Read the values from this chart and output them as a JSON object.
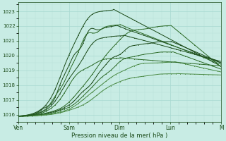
{
  "xlabel": "Pression niveau de la mer( hPa )",
  "bg_color": "#c8ece4",
  "grid_color_major": "#a8d8d0",
  "grid_color_minor": "#b8e0d8",
  "line_color_dark": "#1a4a18",
  "line_color_mid": "#2d6b28",
  "line_color_light": "#4a8a44",
  "ylim": [
    1015.5,
    1023.6
  ],
  "yticks": [
    1016,
    1017,
    1018,
    1019,
    1020,
    1021,
    1022,
    1023
  ],
  "xtick_labels": [
    "Ven",
    "Sam",
    "Dim",
    "Lun",
    "M"
  ],
  "xtick_positions": [
    0,
    0.25,
    0.5,
    0.75,
    1.0
  ],
  "figsize": [
    3.2,
    2.0
  ],
  "dpi": 100
}
